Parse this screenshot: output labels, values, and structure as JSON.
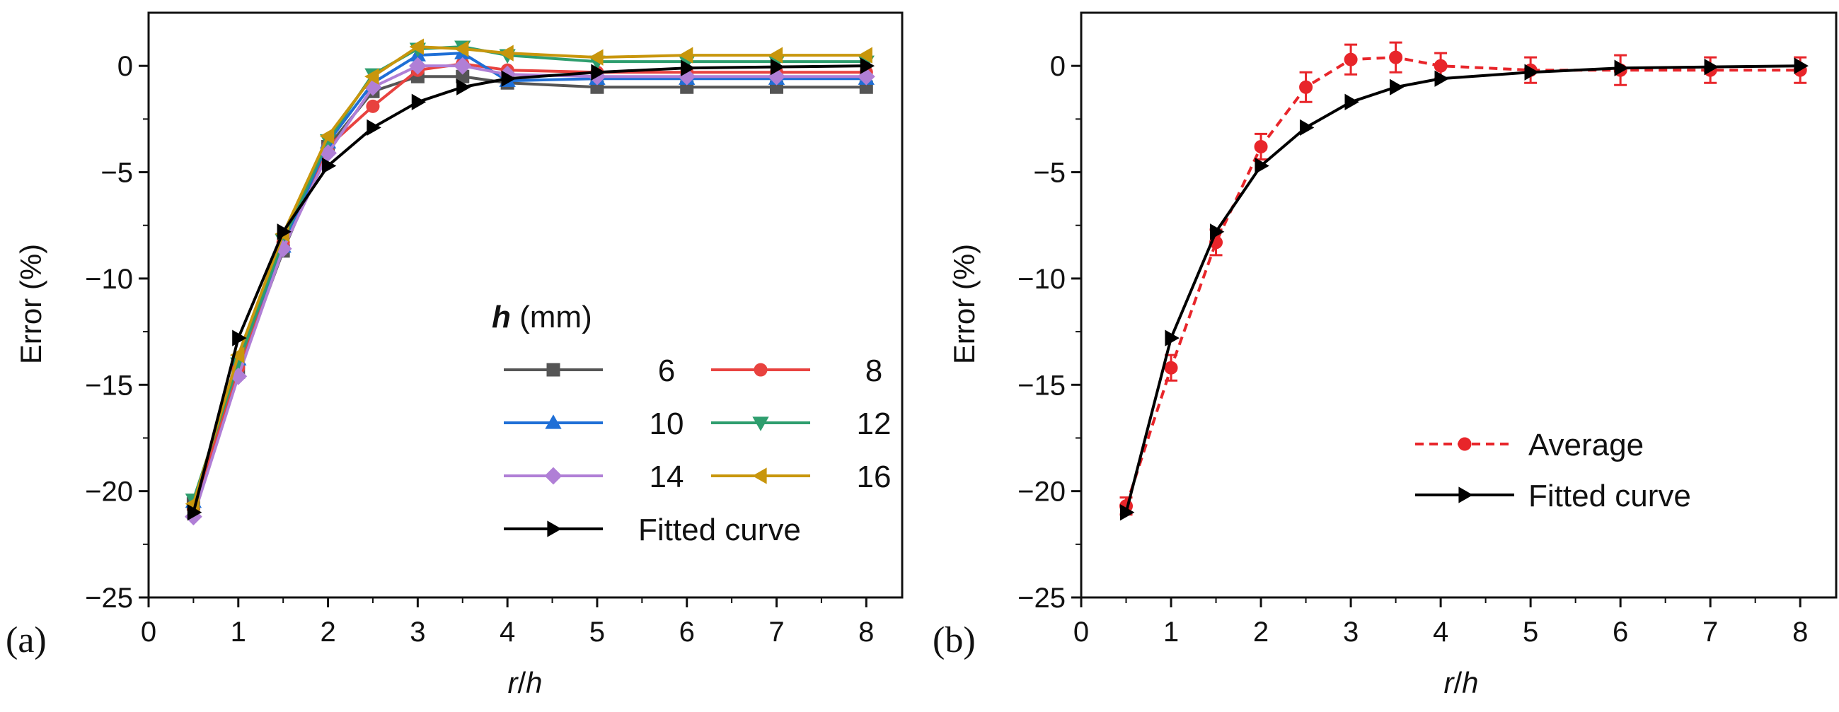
{
  "chart_data": [
    {
      "type": "line",
      "panel_label": "(a)",
      "xlabel": "r/h",
      "xlabel_var1": "r",
      "xlabel_sep": "/",
      "xlabel_var2": "h",
      "ylabel": "Error (%)",
      "xlim": [
        0,
        8.4
      ],
      "ylim": [
        -25,
        2.5
      ],
      "xticks": [
        0,
        1,
        2,
        3,
        4,
        5,
        6,
        7,
        8
      ],
      "yticks": [
        -25,
        -20,
        -15,
        -10,
        -5,
        0
      ],
      "legend_title_var": "h",
      "legend_title_unit": " (mm)",
      "legend_position": "center-right",
      "x": [
        0.5,
        1,
        1.5,
        2,
        2.5,
        3,
        3.5,
        4,
        5,
        6,
        7,
        8
      ],
      "series": [
        {
          "name": "6",
          "color": "#555555",
          "marker": "square",
          "values": [
            -20.6,
            -14.4,
            -8.7,
            -3.8,
            -1.2,
            -0.5,
            -0.5,
            -0.8,
            -1.0,
            -1.0,
            -1.0,
            -1.0
          ]
        },
        {
          "name": "8",
          "color": "#e8423f",
          "marker": "circle",
          "values": [
            -20.8,
            -14.2,
            -8.3,
            -3.8,
            -1.9,
            -0.2,
            0.1,
            -0.2,
            -0.3,
            -0.3,
            -0.3,
            -0.3
          ]
        },
        {
          "name": "10",
          "color": "#1f6fd6",
          "marker": "triangle-up",
          "values": [
            -20.5,
            -13.8,
            -8.5,
            -3.6,
            -0.8,
            0.5,
            0.6,
            -0.7,
            -0.6,
            -0.6,
            -0.6,
            -0.6
          ]
        },
        {
          "name": "12",
          "color": "#2e9e6e",
          "marker": "triangle-down",
          "values": [
            -20.4,
            -14.0,
            -8.2,
            -3.5,
            -0.4,
            0.8,
            0.9,
            0.5,
            0.2,
            0.2,
            0.2,
            0.2
          ]
        },
        {
          "name": "14",
          "color": "#b07fd6",
          "marker": "diamond",
          "values": [
            -21.2,
            -14.6,
            -8.6,
            -4.1,
            -1.0,
            0.0,
            0.0,
            -0.4,
            -0.5,
            -0.5,
            -0.5,
            -0.5
          ]
        },
        {
          "name": "16",
          "color": "#c8960c",
          "marker": "triangle-left",
          "values": [
            -20.6,
            -13.6,
            -7.9,
            -3.3,
            -0.5,
            0.9,
            0.8,
            0.6,
            0.4,
            0.5,
            0.5,
            0.5
          ]
        },
        {
          "name": "Fitted curve",
          "color": "#000000",
          "marker": "triangle-right",
          "values": [
            -21.0,
            -12.8,
            -7.8,
            -4.7,
            -2.9,
            -1.7,
            -1.0,
            -0.6,
            -0.3,
            -0.1,
            -0.05,
            0.0
          ]
        }
      ]
    },
    {
      "type": "line",
      "panel_label": "(b)",
      "xlabel": "r/h",
      "xlabel_var1": "r",
      "xlabel_sep": "/",
      "xlabel_var2": "h",
      "ylabel": "Error (%)",
      "xlim": [
        0,
        8.4
      ],
      "ylim": [
        -25,
        2.5
      ],
      "xticks": [
        0,
        1,
        2,
        3,
        4,
        5,
        6,
        7,
        8
      ],
      "yticks": [
        -25,
        -20,
        -15,
        -10,
        -5,
        0
      ],
      "legend_position": "center-right",
      "x": [
        0.5,
        1,
        1.5,
        2,
        2.5,
        3,
        3.5,
        4,
        5,
        6,
        7,
        8
      ],
      "series": [
        {
          "name": "Average",
          "color": "#e8252a",
          "marker": "circle",
          "dashed": true,
          "values": [
            -20.7,
            -14.2,
            -8.3,
            -3.8,
            -1.0,
            0.3,
            0.4,
            0.0,
            -0.2,
            -0.2,
            -0.2,
            -0.2
          ],
          "errors": [
            0.4,
            0.6,
            0.6,
            0.6,
            0.7,
            0.7,
            0.7,
            0.6,
            0.6,
            0.7,
            0.6,
            0.6
          ]
        },
        {
          "name": "Fitted curve",
          "color": "#000000",
          "marker": "triangle-right",
          "values": [
            -21.0,
            -12.8,
            -7.8,
            -4.7,
            -2.9,
            -1.7,
            -1.0,
            -0.6,
            -0.3,
            -0.1,
            -0.05,
            0.0
          ]
        }
      ]
    }
  ]
}
